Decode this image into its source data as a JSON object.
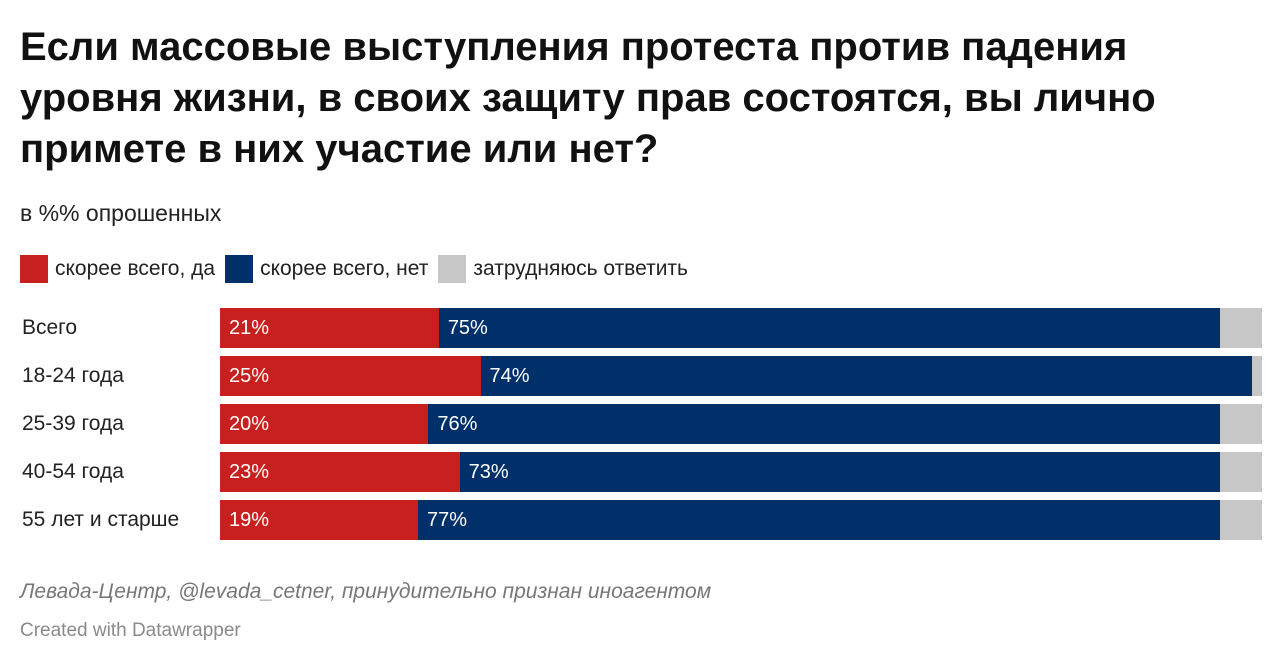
{
  "title": "Если массовые выступления протеста против падения уровня жизни, в своих защиту прав состоятся, вы лично примете в них участие или нет?",
  "subtitle": "в %% опрошенных",
  "colors": {
    "yes": "#c8201f",
    "no": "#003069",
    "unsure": "#c7c7c7"
  },
  "legend": [
    {
      "label": "скорее всего, да",
      "color": "#c8201f"
    },
    {
      "label": "скорее всего, нет",
      "color": "#003069"
    },
    {
      "label": "затрудняюсь ответить",
      "color": "#c7c7c7"
    }
  ],
  "chart_data": {
    "type": "bar",
    "orientation": "horizontal",
    "stacked": true,
    "title": "Если массовые выступления протеста против падения уровня жизни, в своих защиту прав состоятся, вы лично примете в них участие или нет?",
    "subtitle": "в %% опрошенных",
    "categories": [
      "Всего",
      "18-24 года",
      "25-39 года",
      "40-54 года",
      "55 лет и старше"
    ],
    "series": [
      {
        "name": "скорее всего, да",
        "values": [
          21,
          25,
          20,
          23,
          19
        ],
        "labels": [
          "21%",
          "25%",
          "20%",
          "23%",
          "19%"
        ]
      },
      {
        "name": "скорее всего, нет",
        "values": [
          75,
          74,
          76,
          73,
          77
        ],
        "labels": [
          "75%",
          "74%",
          "76%",
          "73%",
          "77%"
        ]
      },
      {
        "name": "затрудняюсь ответить",
        "values": [
          4,
          1,
          4,
          4,
          4
        ],
        "labels": [
          "",
          "",
          "",
          "",
          ""
        ]
      }
    ],
    "xlim": [
      0,
      100
    ],
    "legend": "top-left",
    "grid": false
  },
  "source": "Левада-Центр, @levada_cetner, принудительно признан иноагентом",
  "credit": "Created with Datawrapper"
}
